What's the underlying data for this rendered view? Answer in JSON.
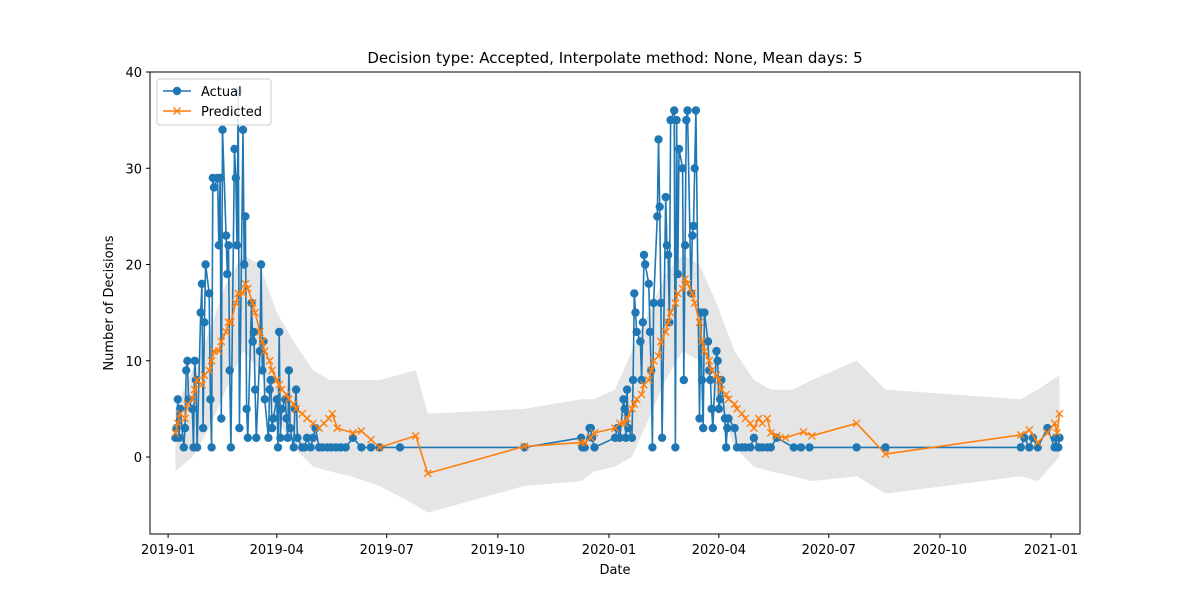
{
  "chart_data": {
    "type": "line",
    "title": "Decision type: Accepted, Interpolate method: None, Mean days: 5",
    "xlabel": "Date",
    "ylabel": "Number of Decisions",
    "xlim": [
      "2018-12-17",
      "2021-01-25"
    ],
    "ylim": [
      -8,
      40
    ],
    "x_ticks": [
      "2019-01",
      "2019-04",
      "2019-07",
      "2019-10",
      "2020-01",
      "2020-04",
      "2020-07",
      "2020-10",
      "2021-01"
    ],
    "x_tick_dates": [
      "2019-01-01",
      "2019-04-01",
      "2019-07-01",
      "2019-10-01",
      "2020-01-01",
      "2020-04-01",
      "2020-07-01",
      "2020-10-01",
      "2021-01-01"
    ],
    "y_ticks": [
      0,
      10,
      20,
      30,
      40
    ],
    "grid": false,
    "legend_position": "top-left",
    "colors": {
      "actual": "#1f77b4",
      "predicted": "#ff7f0e",
      "band": "#d3d3d3"
    },
    "series": [
      {
        "name": "Actual",
        "marker": "circle",
        "x": [
          "2019-01-07",
          "2019-01-08",
          "2019-01-09",
          "2019-01-10",
          "2019-01-11",
          "2019-01-14",
          "2019-01-15",
          "2019-01-16",
          "2019-01-17",
          "2019-01-18",
          "2019-01-21",
          "2019-01-22",
          "2019-01-23",
          "2019-01-24",
          "2019-01-25",
          "2019-01-28",
          "2019-01-29",
          "2019-01-30",
          "2019-01-31",
          "2019-02-01",
          "2019-02-04",
          "2019-02-05",
          "2019-02-06",
          "2019-02-07",
          "2019-02-08",
          "2019-02-11",
          "2019-02-12",
          "2019-02-13",
          "2019-02-14",
          "2019-02-15",
          "2019-02-18",
          "2019-02-19",
          "2019-02-20",
          "2019-02-21",
          "2019-02-22",
          "2019-02-25",
          "2019-02-26",
          "2019-02-27",
          "2019-02-28",
          "2019-03-01",
          "2019-03-04",
          "2019-03-05",
          "2019-03-06",
          "2019-03-07",
          "2019-03-08",
          "2019-03-11",
          "2019-03-12",
          "2019-03-13",
          "2019-03-14",
          "2019-03-15",
          "2019-03-18",
          "2019-03-19",
          "2019-03-20",
          "2019-03-21",
          "2019-03-22",
          "2019-03-25",
          "2019-03-26",
          "2019-03-27",
          "2019-03-28",
          "2019-03-29",
          "2019-04-01",
          "2019-04-02",
          "2019-04-03",
          "2019-04-04",
          "2019-04-05",
          "2019-04-08",
          "2019-04-09",
          "2019-04-10",
          "2019-04-11",
          "2019-04-12",
          "2019-04-15",
          "2019-04-16",
          "2019-04-17",
          "2019-04-18",
          "2019-04-22",
          "2019-04-24",
          "2019-04-26",
          "2019-04-29",
          "2019-05-01",
          "2019-05-03",
          "2019-05-06",
          "2019-05-09",
          "2019-05-13",
          "2019-05-16",
          "2019-05-20",
          "2019-05-24",
          "2019-05-28",
          "2019-06-03",
          "2019-06-10",
          "2019-06-18",
          "2019-06-25",
          "2019-07-12",
          "2019-10-23",
          "2019-12-09",
          "2019-12-10",
          "2019-12-11",
          "2019-12-12",
          "2019-12-16",
          "2019-12-17",
          "2019-12-18",
          "2019-12-20",
          "2020-01-06",
          "2020-01-08",
          "2020-01-10",
          "2020-01-13",
          "2020-01-14",
          "2020-01-15",
          "2020-01-16",
          "2020-01-17",
          "2020-01-20",
          "2020-01-21",
          "2020-01-22",
          "2020-01-23",
          "2020-01-24",
          "2020-01-27",
          "2020-01-28",
          "2020-01-29",
          "2020-01-30",
          "2020-01-31",
          "2020-02-03",
          "2020-02-04",
          "2020-02-05",
          "2020-02-06",
          "2020-02-07",
          "2020-02-10",
          "2020-02-11",
          "2020-02-12",
          "2020-02-13",
          "2020-02-14",
          "2020-02-17",
          "2020-02-18",
          "2020-02-19",
          "2020-02-20",
          "2020-02-21",
          "2020-02-24",
          "2020-02-25",
          "2020-02-26",
          "2020-02-27",
          "2020-02-28",
          "2020-03-02",
          "2020-03-03",
          "2020-03-04",
          "2020-03-05",
          "2020-03-06",
          "2020-03-09",
          "2020-03-10",
          "2020-03-11",
          "2020-03-12",
          "2020-03-13",
          "2020-03-16",
          "2020-03-17",
          "2020-03-18",
          "2020-03-19",
          "2020-03-20",
          "2020-03-23",
          "2020-03-24",
          "2020-03-25",
          "2020-03-26",
          "2020-03-27",
          "2020-03-30",
          "2020-03-31",
          "2020-04-01",
          "2020-04-02",
          "2020-04-03",
          "2020-04-06",
          "2020-04-07",
          "2020-04-08",
          "2020-04-09",
          "2020-04-14",
          "2020-04-16",
          "2020-04-20",
          "2020-04-23",
          "2020-04-27",
          "2020-04-30",
          "2020-05-04",
          "2020-05-07",
          "2020-05-11",
          "2020-05-14",
          "2020-05-19",
          "2020-06-02",
          "2020-06-08",
          "2020-06-15",
          "2020-07-24",
          "2020-08-17",
          "2020-12-07",
          "2020-12-10",
          "2020-12-14",
          "2020-12-17",
          "2020-12-21",
          "2020-12-29",
          "2021-01-04",
          "2021-01-05",
          "2021-01-06",
          "2021-01-07",
          "2021-01-08"
        ],
        "values": [
          2,
          3,
          6,
          2,
          5,
          1,
          3,
          9,
          10,
          6,
          5,
          1,
          10,
          8,
          1,
          15,
          18,
          3,
          14,
          20,
          17,
          6,
          1,
          29,
          28,
          29,
          22,
          29,
          4,
          34,
          23,
          19,
          22,
          9,
          1,
          32,
          29,
          22,
          38,
          3,
          34,
          20,
          25,
          5,
          2,
          16,
          12,
          13,
          7,
          2,
          11,
          20,
          9,
          12,
          6,
          2,
          7,
          8,
          3,
          4,
          6,
          1,
          13,
          2,
          5,
          6,
          4,
          2,
          9,
          3,
          1,
          5,
          7,
          2,
          1,
          1,
          2,
          1,
          2,
          3,
          1,
          1,
          1,
          1,
          1,
          1,
          1,
          2,
          1,
          1,
          1,
          1,
          1,
          2,
          1,
          1,
          1,
          3,
          3,
          2,
          1,
          2,
          3,
          2,
          6,
          5,
          2,
          7,
          3,
          2,
          8,
          17,
          15,
          13,
          12,
          8,
          14,
          21,
          20,
          18,
          13,
          9,
          1,
          16,
          25,
          33,
          26,
          16,
          2,
          27,
          22,
          21,
          14,
          35,
          36,
          1,
          35,
          19,
          32,
          30,
          8,
          22,
          35,
          36,
          17,
          23,
          24,
          30,
          36,
          4,
          15,
          8,
          3,
          15,
          12,
          9,
          8,
          5,
          3,
          11,
          10,
          5,
          6,
          8,
          4,
          1,
          3,
          4,
          3,
          1,
          1,
          1,
          1,
          2,
          1,
          1,
          1,
          1,
          2,
          1,
          1,
          1,
          1,
          1,
          1,
          2,
          1,
          2,
          1,
          3,
          1,
          2,
          1,
          1,
          2
        ]
      },
      {
        "name": "Predicted",
        "marker": "x",
        "x": [
          "2019-01-07",
          "2019-01-09",
          "2019-01-11",
          "2019-01-15",
          "2019-01-17",
          "2019-01-21",
          "2019-01-23",
          "2019-01-25",
          "2019-01-29",
          "2019-01-31",
          "2019-02-04",
          "2019-02-06",
          "2019-02-08",
          "2019-02-12",
          "2019-02-14",
          "2019-02-18",
          "2019-02-20",
          "2019-02-22",
          "2019-02-26",
          "2019-02-28",
          "2019-03-04",
          "2019-03-06",
          "2019-03-08",
          "2019-03-12",
          "2019-03-14",
          "2019-03-18",
          "2019-03-20",
          "2019-03-22",
          "2019-03-26",
          "2019-03-28",
          "2019-04-01",
          "2019-04-03",
          "2019-04-05",
          "2019-04-09",
          "2019-04-11",
          "2019-04-15",
          "2019-04-17",
          "2019-04-22",
          "2019-04-26",
          "2019-05-01",
          "2019-05-06",
          "2019-05-10",
          "2019-05-14",
          "2019-05-17",
          "2019-05-21",
          "2019-06-03",
          "2019-06-10",
          "2019-06-18",
          "2019-06-25",
          "2019-07-25",
          "2019-08-04",
          "2019-10-23",
          "2019-12-09",
          "2019-12-12",
          "2019-12-17",
          "2019-12-20",
          "2020-01-06",
          "2020-01-10",
          "2020-01-14",
          "2020-01-16",
          "2020-01-20",
          "2020-01-22",
          "2020-01-24",
          "2020-01-28",
          "2020-01-30",
          "2020-02-03",
          "2020-02-05",
          "2020-02-07",
          "2020-02-11",
          "2020-02-13",
          "2020-02-17",
          "2020-02-19",
          "2020-02-21",
          "2020-02-25",
          "2020-02-27",
          "2020-03-02",
          "2020-03-04",
          "2020-03-06",
          "2020-03-10",
          "2020-03-12",
          "2020-03-16",
          "2020-03-18",
          "2020-03-20",
          "2020-03-24",
          "2020-03-26",
          "2020-03-30",
          "2020-04-01",
          "2020-04-03",
          "2020-04-07",
          "2020-04-09",
          "2020-04-14",
          "2020-04-16",
          "2020-04-20",
          "2020-04-23",
          "2020-04-27",
          "2020-04-30",
          "2020-05-04",
          "2020-05-07",
          "2020-05-11",
          "2020-05-14",
          "2020-05-19",
          "2020-05-26",
          "2020-06-10",
          "2020-06-17",
          "2020-07-24",
          "2020-08-17",
          "2020-12-07",
          "2020-12-14",
          "2020-12-21",
          "2020-12-29",
          "2021-01-04",
          "2021-01-06",
          "2021-01-08"
        ],
        "values": [
          2.5,
          3.5,
          4.5,
          4,
          5.5,
          6,
          7,
          8,
          7.5,
          8.5,
          9,
          10,
          11,
          11,
          12,
          13,
          14,
          14,
          16,
          17,
          17,
          18,
          17.5,
          16,
          15,
          13,
          12,
          11,
          10,
          9,
          8,
          7.5,
          7,
          6.5,
          6,
          5.5,
          5,
          4.5,
          4,
          3.5,
          3,
          3.5,
          4,
          4.5,
          3,
          2.5,
          2.7,
          1.8,
          1,
          2.2,
          -1.7,
          1.1,
          1.5,
          1.5,
          2,
          2.5,
          3,
          3.5,
          3.5,
          4,
          5,
          5.5,
          6,
          6.5,
          7.5,
          8,
          9,
          10,
          10.5,
          12,
          13,
          14,
          15,
          16,
          17,
          17.5,
          18.5,
          18,
          17,
          16,
          14,
          12,
          11,
          10,
          9,
          8.5,
          8,
          7,
          6.5,
          6,
          5.5,
          5,
          4.5,
          4,
          3.5,
          3,
          4,
          3.5,
          4,
          2.5,
          2.2,
          2,
          2.6,
          2.2,
          3.5,
          0.3,
          2.3,
          2.8,
          1.5,
          2.5,
          3.5,
          2.5,
          4.5
        ]
      }
    ],
    "band": {
      "x": [
        "2019-01-07",
        "2019-01-21",
        "2019-02-04",
        "2019-02-18",
        "2019-03-04",
        "2019-03-18",
        "2019-04-01",
        "2019-04-15",
        "2019-05-01",
        "2019-05-15",
        "2019-06-01",
        "2019-06-25",
        "2019-07-25",
        "2019-08-04",
        "2019-10-23",
        "2019-12-09",
        "2019-12-20",
        "2020-01-06",
        "2020-01-20",
        "2020-02-03",
        "2020-02-17",
        "2020-03-02",
        "2020-03-16",
        "2020-03-30",
        "2020-04-14",
        "2020-04-30",
        "2020-05-14",
        "2020-06-01",
        "2020-06-17",
        "2020-07-24",
        "2020-08-17",
        "2020-12-07",
        "2020-12-21",
        "2021-01-08"
      ],
      "upper": [
        5,
        9,
        13,
        18,
        21,
        20,
        15,
        12,
        9,
        8,
        8,
        8,
        9,
        4.5,
        5,
        6,
        6,
        7,
        11,
        15,
        19,
        21,
        20,
        16,
        11,
        8,
        7,
        7,
        8,
        10,
        7,
        6,
        7,
        8.5
      ],
      "lower": [
        -1.5,
        0,
        3,
        7,
        11,
        9,
        4,
        1,
        -1,
        -1.5,
        -2,
        -3,
        -5,
        -5.8,
        -3,
        -2.5,
        -1.5,
        -1,
        0,
        4,
        8,
        11,
        10,
        6,
        1,
        -1,
        -1.5,
        -2,
        -2.5,
        -2,
        -3.8,
        -2,
        -2.5,
        0
      ]
    }
  }
}
